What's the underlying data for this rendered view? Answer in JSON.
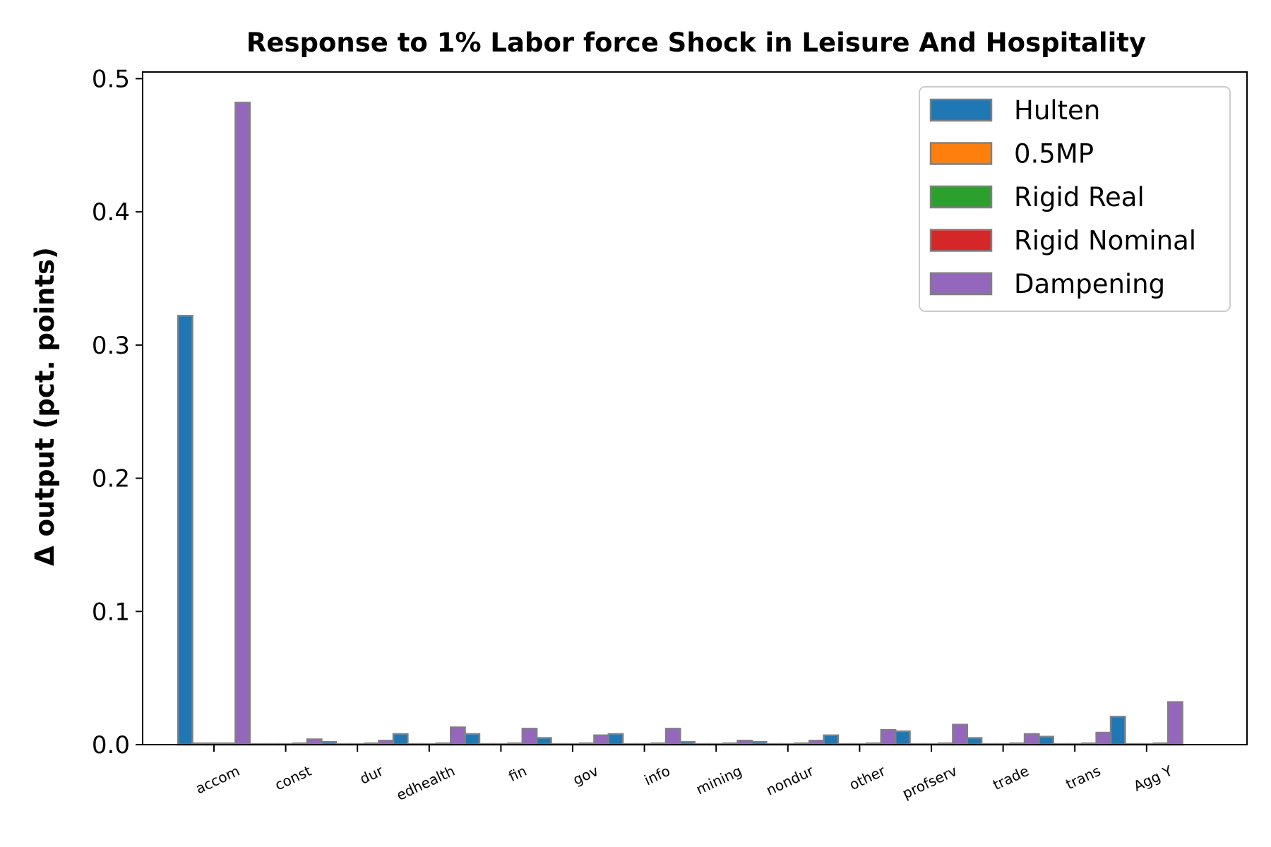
{
  "chart_data": {
    "type": "bar",
    "title": "Response to 1% Labor force Shock in Leisure And Hospitality",
    "ylabel": "Δ output (pct. points)",
    "xlabel": "",
    "ylim": [
      0,
      0.505
    ],
    "yticks": [
      "0.0",
      "0.1",
      "0.2",
      "0.3",
      "0.4",
      "0.5"
    ],
    "grid": false,
    "legend_position": "top-right",
    "categories": [
      "accom",
      "const",
      "dur",
      "edhealth",
      "fin",
      "gov",
      "info",
      "mining",
      "nondur",
      "other",
      "profserv",
      "trade",
      "trans",
      "Agg Y"
    ],
    "series": [
      {
        "name": "Hulten",
        "color": "#1f77b4",
        "values": [
          0.322,
          0.0005,
          0.002,
          0.008,
          0.008,
          0.005,
          0.008,
          0.002,
          0.002,
          0.007,
          0.01,
          0.005,
          0.006,
          0.021
        ]
      },
      {
        "name": "0.5MP",
        "color": "#ff7f0e",
        "values": [
          0.001,
          0.0005,
          0.0005,
          0.0005,
          0.0005,
          0.0005,
          0.0005,
          0.0005,
          0.0005,
          0.0005,
          0.0005,
          0.0005,
          0.0005,
          0.0005
        ]
      },
      {
        "name": "Rigid Real",
        "color": "#2ca02c",
        "values": [
          0.001,
          0.0005,
          0.0005,
          0.0005,
          0.0005,
          0.0005,
          0.0005,
          0.0005,
          0.0005,
          0.0005,
          0.0005,
          0.0005,
          0.0005,
          0.0005
        ]
      },
      {
        "name": "Rigid Nominal",
        "color": "#d62728",
        "values": [
          0.001,
          0.001,
          0.001,
          0.001,
          0.001,
          0.001,
          0.001,
          0.001,
          0.001,
          0.001,
          0.001,
          0.001,
          0.001,
          0.001
        ]
      },
      {
        "name": "Dampening",
        "color": "#9467bd",
        "values": [
          0.482,
          0.004,
          0.003,
          0.013,
          0.012,
          0.007,
          0.012,
          0.003,
          0.003,
          0.011,
          0.015,
          0.008,
          0.009,
          0.032
        ]
      }
    ],
    "bar_edge_color": "#808080"
  }
}
